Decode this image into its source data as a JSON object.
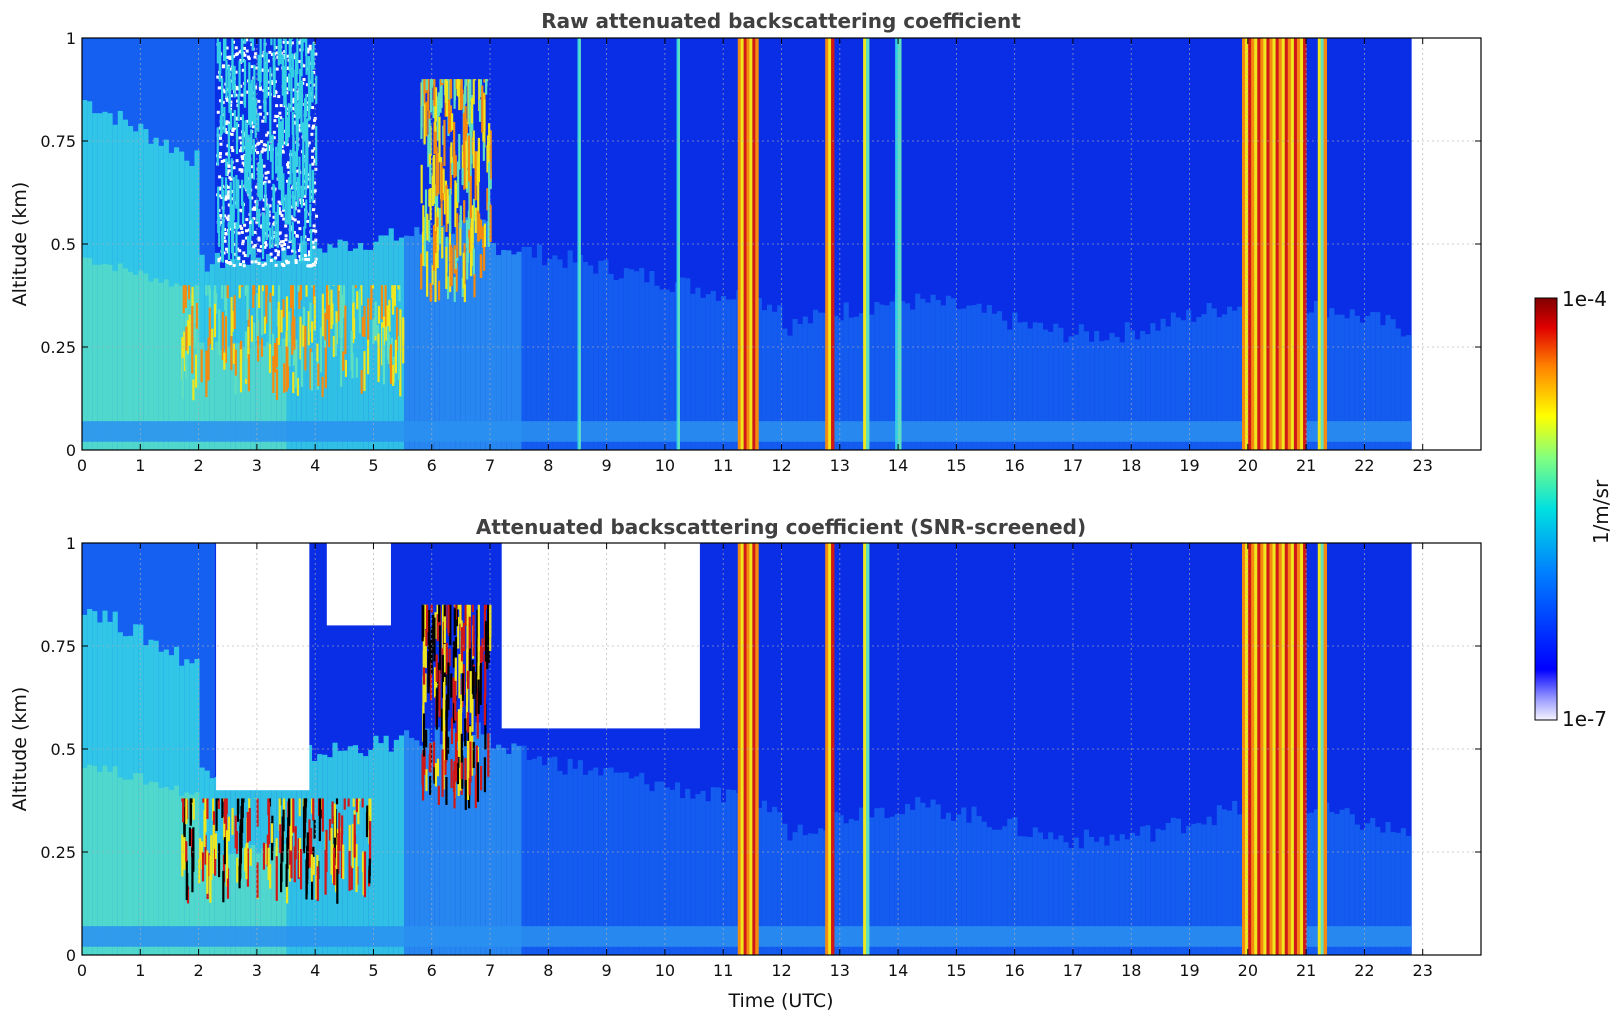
{
  "chart_data": [
    {
      "type": "heatmap",
      "title": "Raw attenuated backscattering coefficient",
      "xlabel": "",
      "ylabel": "Altitude (km)",
      "xlim": [
        0,
        24
      ],
      "ylim": [
        0,
        1
      ],
      "x_ticks": [
        "0",
        "1",
        "2",
        "3",
        "4",
        "5",
        "6",
        "7",
        "8",
        "9",
        "10",
        "11",
        "12",
        "13",
        "14",
        "15",
        "16",
        "17",
        "18",
        "19",
        "20",
        "21",
        "22",
        "23"
      ],
      "y_ticks": [
        "0",
        "0.25",
        "0.5",
        "0.75",
        "1"
      ],
      "grid": true,
      "data_end_time": 22.8,
      "background_layers": [
        {
          "name": "planetary boundary layer",
          "altitude_top": [
            0.85,
            0.8,
            0.7,
            0.6,
            0.6,
            0.55,
            0.6,
            0.5,
            0.35,
            0.3,
            0.3,
            0.3
          ]
        },
        {
          "name": "near-surface band",
          "altitude": [
            0.02,
            0.07
          ]
        }
      ],
      "features": [
        {
          "type": "aerosol/cloud layer",
          "time": [
            1.7,
            5.5
          ],
          "altitude": [
            0.12,
            0.4
          ],
          "level": "high"
        },
        {
          "type": "clear region",
          "time": [
            2.3,
            4.0
          ],
          "altitude": [
            0.45,
            1.0
          ],
          "level": "none"
        },
        {
          "type": "cloud layer",
          "time": [
            5.8,
            7.0
          ],
          "altitude": [
            0.35,
            0.9
          ],
          "level": "high"
        },
        {
          "type": "rain/cloud column",
          "time": [
            11.25,
            11.6
          ],
          "altitude": [
            0,
            1
          ],
          "level": "very high"
        },
        {
          "type": "cloud column",
          "time": [
            12.75,
            12.9
          ],
          "altitude": [
            0,
            1
          ],
          "level": "very high"
        },
        {
          "type": "cloud column",
          "time": [
            13.4,
            13.5
          ],
          "altitude": [
            0,
            1
          ],
          "level": "high"
        },
        {
          "type": "cloud column",
          "time": [
            13.95,
            14.05
          ],
          "altitude": [
            0,
            1
          ],
          "level": "medium"
        },
        {
          "type": "cloud column",
          "time": [
            8.5,
            8.55
          ],
          "altitude": [
            0,
            1
          ],
          "level": "medium"
        },
        {
          "type": "cloud column",
          "time": [
            10.2,
            10.25
          ],
          "altitude": [
            0,
            1
          ],
          "level": "medium"
        },
        {
          "type": "rain/cloud column",
          "time": [
            19.9,
            21.0
          ],
          "altitude": [
            0,
            1
          ],
          "level": "very high"
        },
        {
          "type": "cloud column",
          "time": [
            21.2,
            21.35
          ],
          "altitude": [
            0,
            1
          ],
          "level": "high"
        }
      ]
    },
    {
      "type": "heatmap",
      "title": "Attenuated backscattering coefficient (SNR-screened)",
      "xlabel": "Time (UTC)",
      "ylabel": "Altitude (km)",
      "xlim": [
        0,
        24
      ],
      "ylim": [
        0,
        1
      ],
      "x_ticks": [
        "0",
        "1",
        "2",
        "3",
        "4",
        "5",
        "6",
        "7",
        "8",
        "9",
        "10",
        "11",
        "12",
        "13",
        "14",
        "15",
        "16",
        "17",
        "18",
        "19",
        "20",
        "21",
        "22",
        "23"
      ],
      "y_ticks": [
        "0",
        "0.25",
        "0.5",
        "0.75",
        "1"
      ],
      "grid": true,
      "data_end_time": 22.8,
      "screened_out_regions": [
        {
          "time": [
            2.3,
            3.9
          ],
          "altitude": [
            0.4,
            1.0
          ]
        },
        {
          "time": [
            4.2,
            5.3
          ],
          "altitude": [
            0.8,
            1.0
          ]
        },
        {
          "time": [
            7.2,
            10.6
          ],
          "altitude": [
            0.55,
            1.0
          ]
        }
      ],
      "features": [
        {
          "type": "aerosol/cloud layer",
          "time": [
            1.7,
            5.0
          ],
          "altitude": [
            0.12,
            0.38
          ],
          "level": "saturated"
        },
        {
          "type": "cloud layer",
          "time": [
            5.8,
            7.0
          ],
          "altitude": [
            0.35,
            0.85
          ],
          "level": "saturated"
        },
        {
          "type": "rain/cloud column",
          "time": [
            11.25,
            11.6
          ],
          "altitude": [
            0,
            1
          ],
          "level": "very high"
        },
        {
          "type": "cloud column",
          "time": [
            12.75,
            12.9
          ],
          "altitude": [
            0,
            1
          ],
          "level": "very high"
        },
        {
          "type": "cloud column",
          "time": [
            13.4,
            13.5
          ],
          "altitude": [
            0,
            1
          ],
          "level": "high"
        },
        {
          "type": "rain/cloud column",
          "time": [
            19.9,
            21.0
          ],
          "altitude": [
            0,
            1
          ],
          "level": "very high"
        },
        {
          "type": "cloud column",
          "time": [
            21.2,
            21.35
          ],
          "altitude": [
            0,
            1
          ],
          "level": "high"
        }
      ]
    }
  ],
  "colorbar": {
    "label": "1/m/sr",
    "max_label": "1e-4",
    "min_label": "1e-7",
    "colormap": "jet",
    "scale": "log"
  },
  "colors": {
    "deep_blue": "#0a2ee6",
    "mid_blue": "#1560f0",
    "light_blue": "#2a90f0",
    "cyan": "#34d0e6",
    "teal_green": "#5ee0c0",
    "yellow": "#f0e61e",
    "orange": "#f58a10",
    "red": "#d01818",
    "dark_red": "#7a0000",
    "black": "#000000"
  }
}
